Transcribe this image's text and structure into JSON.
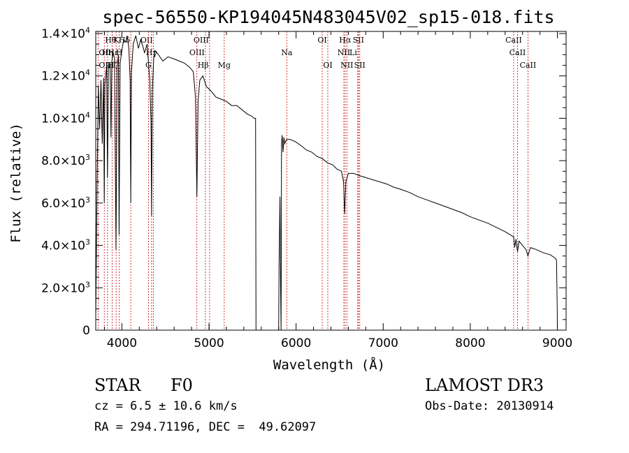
{
  "chart_data": {
    "type": "line",
    "title": "spec-56550-KP194045N483045V02_sp15-018.fits",
    "xlabel": "Wavelength (Å)",
    "ylabel": "Flux (relative)",
    "xlim": [
      3700,
      9100
    ],
    "ylim": [
      0,
      14100
    ],
    "x_ticks": [
      4000,
      5000,
      6000,
      7000,
      8000,
      9000
    ],
    "x_tick_labels": [
      "4000",
      "5000",
      "6000",
      "7000",
      "8000",
      "9000"
    ],
    "y_ticks": [
      {
        "value": 0,
        "mant": "0",
        "exp": ""
      },
      {
        "value": 2000,
        "mant": "2.0×10",
        "exp": "3"
      },
      {
        "value": 4000,
        "mant": "4.0×10",
        "exp": "3"
      },
      {
        "value": 6000,
        "mant": "6.0×10",
        "exp": "3"
      },
      {
        "value": 8000,
        "mant": "8.0×10",
        "exp": "3"
      },
      {
        "value": 10000,
        "mant": "1.0×10",
        "exp": "4"
      },
      {
        "value": 12000,
        "mant": "1.2×10",
        "exp": "4"
      },
      {
        "value": 14000,
        "mant": "1.4×10",
        "exp": "4"
      }
    ],
    "series": [
      {
        "name": "spectrum",
        "points": [
          [
            3700,
            600
          ],
          [
            3715,
            6800
          ],
          [
            3730,
            11500
          ],
          [
            3745,
            9500
          ],
          [
            3760,
            11800
          ],
          [
            3775,
            8800
          ],
          [
            3790,
            11900
          ],
          [
            3798,
            6000
          ],
          [
            3805,
            11600
          ],
          [
            3825,
            12500
          ],
          [
            3835,
            7200
          ],
          [
            3845,
            12300
          ],
          [
            3865,
            12600
          ],
          [
            3875,
            9100
          ],
          [
            3885,
            12700
          ],
          [
            3900,
            13100
          ],
          [
            3915,
            12800
          ],
          [
            3933,
            3800
          ],
          [
            3945,
            12400
          ],
          [
            3960,
            13000
          ],
          [
            3968,
            4500
          ],
          [
            3980,
            12600
          ],
          [
            4000,
            13200
          ],
          [
            4020,
            13700
          ],
          [
            4045,
            13600
          ],
          [
            4060,
            13900
          ],
          [
            4080,
            13300
          ],
          [
            4095,
            11800
          ],
          [
            4102,
            6000
          ],
          [
            4110,
            12200
          ],
          [
            4130,
            13500
          ],
          [
            4160,
            13900
          ],
          [
            4190,
            13300
          ],
          [
            4215,
            13700
          ],
          [
            4240,
            13400
          ],
          [
            4260,
            13100
          ],
          [
            4290,
            13500
          ],
          [
            4320,
            11800
          ],
          [
            4335,
            9800
          ],
          [
            4341,
            5400
          ],
          [
            4350,
            11300
          ],
          [
            4365,
            12800
          ],
          [
            4380,
            13200
          ],
          [
            4420,
            13000
          ],
          [
            4470,
            12700
          ],
          [
            4530,
            12900
          ],
          [
            4600,
            12800
          ],
          [
            4660,
            12700
          ],
          [
            4720,
            12600
          ],
          [
            4780,
            12400
          ],
          [
            4820,
            12200
          ],
          [
            4845,
            11000
          ],
          [
            4861,
            6300
          ],
          [
            4875,
            10800
          ],
          [
            4895,
            11800
          ],
          [
            4930,
            12000
          ],
          [
            4970,
            11500
          ],
          [
            5020,
            11300
          ],
          [
            5080,
            11000
          ],
          [
            5140,
            10900
          ],
          [
            5200,
            10800
          ],
          [
            5260,
            10600
          ],
          [
            5320,
            10600
          ],
          [
            5380,
            10400
          ],
          [
            5440,
            10200
          ],
          [
            5490,
            10100
          ],
          [
            5520,
            10000
          ],
          [
            5535,
            10000
          ],
          [
            5540,
            0
          ],
          [
            5800,
            0
          ],
          [
            5805,
            3000
          ],
          [
            5815,
            6300
          ],
          [
            5822,
            2000
          ],
          [
            5828,
            0
          ],
          [
            5833,
            8800
          ],
          [
            5840,
            9200
          ],
          [
            5850,
            8400
          ],
          [
            5860,
            9100
          ],
          [
            5870,
            8800
          ],
          [
            5890,
            9000
          ],
          [
            5930,
            9000
          ],
          [
            5990,
            8900
          ],
          [
            6060,
            8700
          ],
          [
            6120,
            8500
          ],
          [
            6180,
            8400
          ],
          [
            6240,
            8200
          ],
          [
            6300,
            8100
          ],
          [
            6360,
            7900
          ],
          [
            6420,
            7800
          ],
          [
            6470,
            7600
          ],
          [
            6520,
            7500
          ],
          [
            6545,
            7000
          ],
          [
            6558,
            5500
          ],
          [
            6572,
            7000
          ],
          [
            6600,
            7400
          ],
          [
            6660,
            7400
          ],
          [
            6720,
            7300
          ],
          [
            6800,
            7200
          ],
          [
            6880,
            7100
          ],
          [
            6960,
            7000
          ],
          [
            7040,
            6900
          ],
          [
            7120,
            6750
          ],
          [
            7200,
            6650
          ],
          [
            7300,
            6500
          ],
          [
            7400,
            6300
          ],
          [
            7500,
            6150
          ],
          [
            7600,
            6000
          ],
          [
            7700,
            5850
          ],
          [
            7800,
            5700
          ],
          [
            7900,
            5550
          ],
          [
            8000,
            5350
          ],
          [
            8100,
            5200
          ],
          [
            8200,
            5050
          ],
          [
            8300,
            4850
          ],
          [
            8400,
            4650
          ],
          [
            8498,
            4400
          ],
          [
            8510,
            3900
          ],
          [
            8525,
            4300
          ],
          [
            8542,
            3700
          ],
          [
            8560,
            4200
          ],
          [
            8600,
            4000
          ],
          [
            8640,
            3800
          ],
          [
            8662,
            3500
          ],
          [
            8690,
            3900
          ],
          [
            8760,
            3800
          ],
          [
            8840,
            3650
          ],
          [
            8920,
            3550
          ],
          [
            8975,
            3400
          ],
          [
            8990,
            3300
          ],
          [
            8998,
            1000
          ],
          [
            9000,
            0
          ]
        ]
      }
    ],
    "line_markers": [
      {
        "label": "Hθ",
        "wave": 3798,
        "row": 1,
        "side": "r"
      },
      {
        "label": "OII",
        "wave": 3727,
        "row": 2,
        "side": "r"
      },
      {
        "label": "OIII",
        "wave": 3727,
        "row": 3,
        "side": "r"
      },
      {
        "label": "K",
        "wave": 3934,
        "row": 1,
        "side": "c"
      },
      {
        "label": "Hε",
        "wave": 3970,
        "row": 2,
        "side": "l"
      },
      {
        "label": "Hζ",
        "wave": 3889,
        "row": 3,
        "side": "c"
      },
      {
        "label": "Hδ",
        "wave": 4102,
        "row": 1,
        "side": "l"
      },
      {
        "label": "H",
        "wave": 3969,
        "row": 2,
        "side": "c"
      },
      {
        "label": "Hη",
        "wave": 3835,
        "row": 2,
        "side": "c"
      },
      {
        "label": "OII",
        "wave": 4363,
        "row": 1,
        "side": "l"
      },
      {
        "label": "Hγ",
        "wave": 4341,
        "row": 2,
        "side": "c"
      },
      {
        "label": "G",
        "wave": 4305,
        "row": 3,
        "side": "c"
      },
      {
        "label": "OIII",
        "wave": 5007,
        "row": 1,
        "side": "l"
      },
      {
        "label": "OIII",
        "wave": 4959,
        "row": 2,
        "side": "l"
      },
      {
        "label": "Hβ",
        "wave": 4861,
        "row": 3,
        "side": "r"
      },
      {
        "label": "Mg",
        "wave": 5175,
        "row": 3,
        "side": "c"
      },
      {
        "label": "Na",
        "wave": 5893,
        "row": 2,
        "side": "c"
      },
      {
        "label": "OI",
        "wave": 6300,
        "row": 1,
        "side": "c"
      },
      {
        "label": "OI",
        "wave": 6364,
        "row": 3,
        "side": "c"
      },
      {
        "label": "Hα",
        "wave": 6563,
        "row": 1,
        "side": "c"
      },
      {
        "label": "NII",
        "wave": 6548,
        "row": 2,
        "side": "c"
      },
      {
        "label": "NII",
        "wave": 6583,
        "row": 3,
        "side": "c"
      },
      {
        "label": "SII",
        "wave": 6716,
        "row": 1,
        "side": "c"
      },
      {
        "label": "Li",
        "wave": 6708,
        "row": 2,
        "side": "l"
      },
      {
        "label": "SII",
        "wave": 6731,
        "row": 3,
        "side": "c"
      },
      {
        "label": "CaII",
        "wave": 8498,
        "row": 1,
        "side": "c"
      },
      {
        "label": "CaII",
        "wave": 8542,
        "row": 2,
        "side": "c"
      },
      {
        "label": "CaII",
        "wave": 8662,
        "row": 3,
        "side": "c"
      }
    ],
    "colors": {
      "spectrum": "#000000",
      "markers": "#cc0000",
      "axes": "#000000"
    }
  },
  "info": {
    "object_class": "STAR",
    "subclass": "F0",
    "survey": "LAMOST DR3",
    "redshift": "cz = 6.5 ± 10.6 km/s",
    "obs_date": "Obs-Date: 20130914",
    "coords": "RA = 294.71196, DEC =  49.62097"
  }
}
